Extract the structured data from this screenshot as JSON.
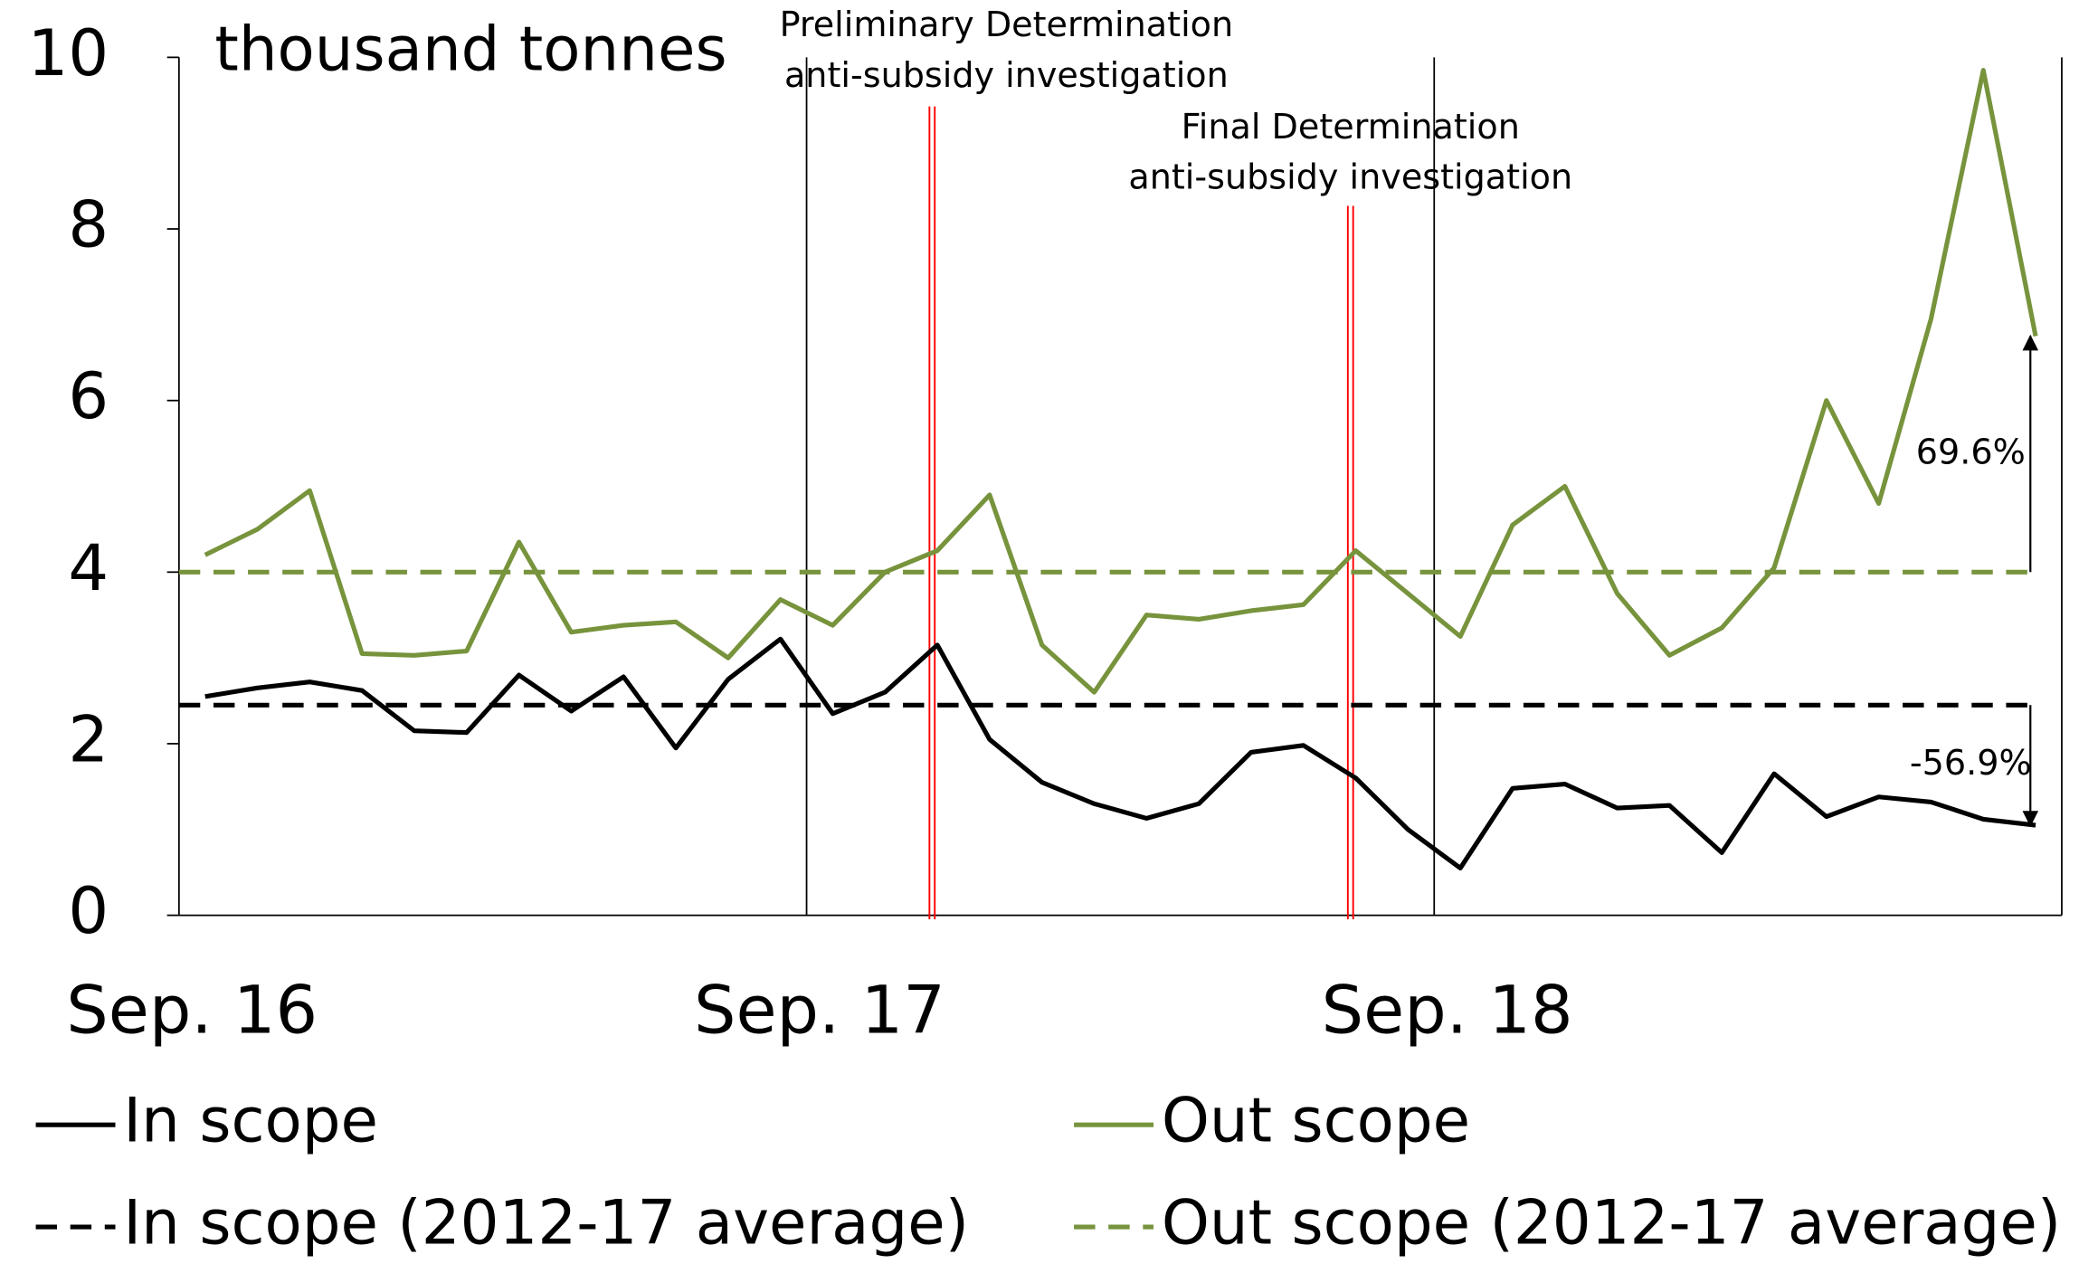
{
  "chart_data": {
    "type": "line",
    "y_label": "thousand tonnes",
    "xlim": [
      0,
      36
    ],
    "xticks": [
      {
        "value": 0,
        "label": "Sep. 16"
      },
      {
        "value": 12,
        "label": "Sep. 17"
      },
      {
        "value": 24,
        "label": "Sep. 18"
      }
    ],
    "ylim": [
      0,
      10
    ],
    "yticks": [
      0,
      2,
      4,
      6,
      8,
      10
    ],
    "x": [
      0.5,
      1.5,
      2.5,
      3.5,
      4.5,
      5.5,
      6.5,
      7.5,
      8.5,
      9.5,
      10.5,
      11.5,
      12.5,
      13.5,
      14.5,
      15.5,
      16.5,
      17.5,
      18.5,
      19.5,
      20.5,
      21.5,
      22.5,
      23.5,
      24.5,
      25.5,
      26.5,
      27.5,
      28.5,
      29.5,
      30.5,
      31.5,
      32.5,
      33.5,
      34.5,
      35.5
    ],
    "series": [
      {
        "name": "In scope",
        "color": "#000000",
        "values": [
          2.55,
          2.65,
          2.72,
          2.62,
          2.15,
          2.13,
          2.8,
          2.38,
          2.78,
          1.95,
          2.75,
          3.22,
          2.35,
          2.6,
          3.15,
          2.05,
          1.55,
          1.3,
          1.13,
          1.3,
          1.9,
          1.98,
          1.6,
          1.0,
          0.55,
          1.48,
          1.53,
          1.25,
          1.28,
          0.73,
          1.65,
          1.15,
          1.38,
          1.32,
          1.12,
          1.05
        ]
      },
      {
        "name": "Out scope",
        "color": "#77933c",
        "values": [
          4.2,
          4.5,
          4.95,
          3.05,
          3.03,
          3.08,
          4.35,
          3.3,
          3.38,
          3.42,
          3.0,
          3.68,
          3.38,
          4.0,
          4.25,
          4.9,
          3.15,
          2.6,
          3.5,
          3.45,
          3.55,
          3.62,
          4.25,
          3.75,
          3.25,
          4.55,
          5.0,
          3.75,
          3.03,
          3.35,
          4.05,
          6.0,
          4.8,
          6.95,
          9.85,
          6.75
        ]
      }
    ],
    "reference_lines": [
      {
        "name": "In scope (2012-17 average)",
        "color": "#000000",
        "value": 2.45
      },
      {
        "name": "Out scope (2012-17 average)",
        "color": "#77933c",
        "value": 4.0
      }
    ],
    "events": [
      {
        "x": 14.4,
        "color": "#ff0000",
        "label": [
          "Preliminary Determination",
          "anti-subsidy investigation"
        ]
      },
      {
        "x": 22.4,
        "color": "#ff0000",
        "label": [
          "Final Determination",
          "anti-subsidy investigation"
        ]
      }
    ],
    "changes": [
      {
        "series": 1,
        "x": 35.4,
        "label": "69.6%"
      },
      {
        "series": 0,
        "x": 35.4,
        "label": "-56.9%"
      }
    ],
    "legend": "bottom"
  }
}
